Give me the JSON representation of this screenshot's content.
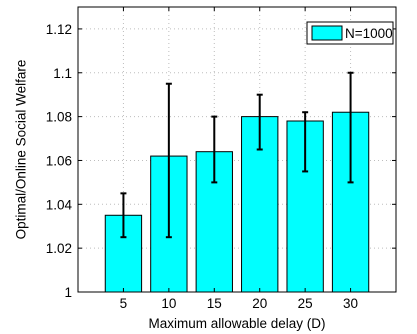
{
  "chart_data": {
    "type": "bar",
    "categories": [
      "5",
      "10",
      "15",
      "20",
      "25",
      "30"
    ],
    "series": [
      {
        "name": "N=1000",
        "values": [
          1.035,
          1.062,
          1.064,
          1.08,
          1.078,
          1.082
        ],
        "error_low": [
          1.025,
          1.025,
          1.05,
          1.065,
          1.055,
          1.05
        ],
        "error_high": [
          1.045,
          1.095,
          1.08,
          1.09,
          1.082,
          1.1
        ]
      }
    ],
    "title": "",
    "xlabel": "Maximum allowable delay (D)",
    "ylabel": "Optimal/Online Social Welfare",
    "xlim": [
      0,
      35
    ],
    "ylim": [
      1,
      1.13
    ],
    "yticks": [
      "1",
      "1.02",
      "1.04",
      "1.06",
      "1.08",
      "1.1",
      "1.12"
    ],
    "grid": true,
    "legend_position": "top-right",
    "bar_color": "#00ffff",
    "edge_color": "#000000",
    "grid_color": "#bdbdbd"
  }
}
